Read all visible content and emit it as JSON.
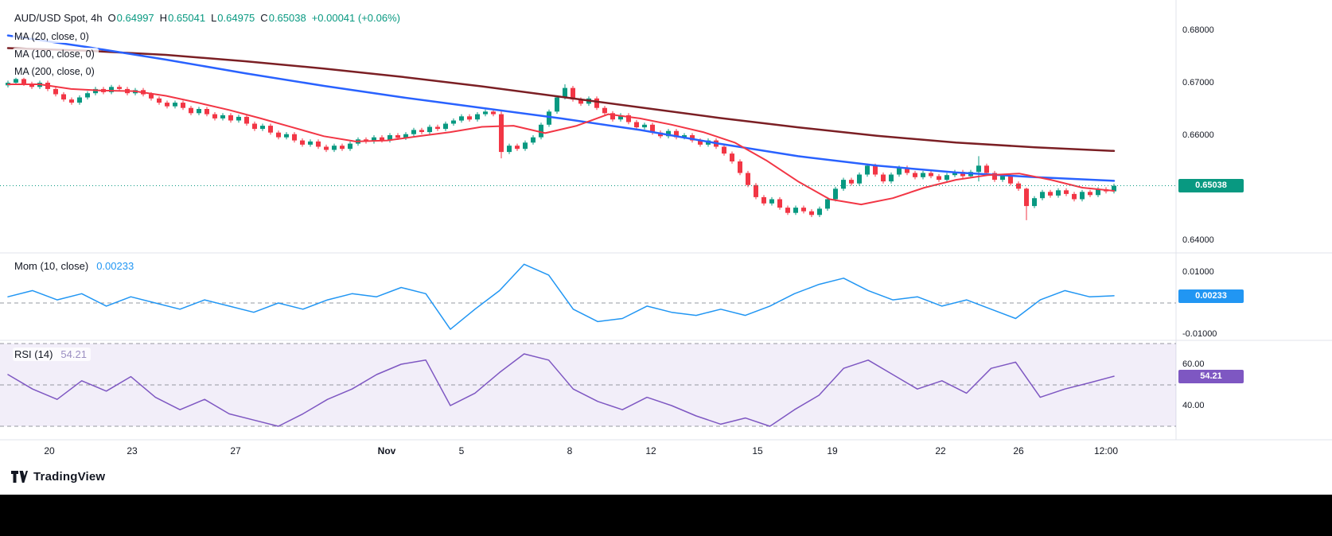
{
  "header": {
    "symbol": "AUD/USD Spot, 4h",
    "ohlc": [
      {
        "label": "O",
        "value": "0.64997"
      },
      {
        "label": "H",
        "value": "0.65041"
      },
      {
        "label": "L",
        "value": "0.64975"
      },
      {
        "label": "C",
        "value": "0.65038"
      }
    ],
    "change": "+0.00041 (+0.06%)",
    "ma_labels": [
      "MA (20, close, 0)",
      "MA (100, close, 0)",
      "MA (200, close, 0)"
    ]
  },
  "panes": {
    "mom": {
      "label": "Mom (10, close)",
      "value": "0.00233",
      "badge": "0.00233"
    },
    "rsi": {
      "label": "RSI (14)",
      "value": "54.21",
      "badge": "54.21"
    }
  },
  "axes": {
    "price": [
      "0.68000",
      "0.67000",
      "0.66000",
      "0.64000"
    ],
    "price_badge": "0.65038",
    "mom": [
      "0.01000",
      "-0.01000"
    ],
    "rsi": [
      "60.00",
      "40.00"
    ],
    "time": [
      "20",
      "23",
      "27",
      "Nov",
      "5",
      "8",
      "12",
      "15",
      "19",
      "22",
      "26",
      "12:00"
    ]
  },
  "footer": {
    "brand": "TradingView"
  },
  "colors": {
    "up": "#089981",
    "down": "#f23645",
    "ma20": "#f23645",
    "ma100": "#2962ff",
    "ma200": "#7b1f24",
    "mom": "#2196f3",
    "rsi": "#7e57c2",
    "rsi_band": "rgba(126,87,194,0.10)",
    "grid_dash": "#9598a1",
    "separator": "#e0e3eb"
  },
  "chart_data": {
    "type": "candlestick",
    "title": "AUD/USD Spot, 4h",
    "interval": "4h",
    "last_price": 0.65038,
    "ohlc_current": {
      "open": 0.64997,
      "high": 0.65041,
      "low": 0.64975,
      "close": 0.65038,
      "change": 0.00041,
      "change_pct": 0.06
    },
    "price_axis_ticks": [
      0.68,
      0.67,
      0.66,
      0.64
    ],
    "x_tick_labels": [
      "20",
      "23",
      "27",
      "Nov",
      "5",
      "8",
      "12",
      "15",
      "19",
      "22",
      "26",
      "12:00"
    ],
    "candles": {
      "first_open": 0.6695,
      "closes": [
        0.67,
        0.6707,
        0.6698,
        0.6692,
        0.67,
        0.6688,
        0.6678,
        0.6668,
        0.6662,
        0.6672,
        0.668,
        0.6688,
        0.6682,
        0.6692,
        0.6688,
        0.668,
        0.6686,
        0.6678,
        0.667,
        0.6662,
        0.6655,
        0.6662,
        0.6652,
        0.6642,
        0.665,
        0.664,
        0.6632,
        0.6638,
        0.6628,
        0.6635,
        0.6622,
        0.6612,
        0.6618,
        0.6605,
        0.6596,
        0.6602,
        0.659,
        0.6582,
        0.6588,
        0.6578,
        0.6572,
        0.658,
        0.6574,
        0.6584,
        0.6592,
        0.6588,
        0.6596,
        0.659,
        0.66,
        0.6595,
        0.6602,
        0.661,
        0.6606,
        0.6616,
        0.6612,
        0.6622,
        0.6628,
        0.6636,
        0.663,
        0.664,
        0.6645,
        0.664,
        0.6568,
        0.658,
        0.6574,
        0.6586,
        0.6596,
        0.662,
        0.6645,
        0.6672,
        0.669,
        0.6668,
        0.666,
        0.667,
        0.6652,
        0.6642,
        0.663,
        0.6638,
        0.6625,
        0.6615,
        0.662,
        0.6605,
        0.6598,
        0.6608,
        0.6596,
        0.66,
        0.659,
        0.6582,
        0.659,
        0.6578,
        0.6565,
        0.655,
        0.6528,
        0.6505,
        0.6482,
        0.647,
        0.6478,
        0.6462,
        0.6452,
        0.6462,
        0.6455,
        0.6448,
        0.646,
        0.6478,
        0.6498,
        0.6515,
        0.6508,
        0.6525,
        0.6542,
        0.6525,
        0.6512,
        0.6525,
        0.6538,
        0.6528,
        0.652,
        0.6528,
        0.6522,
        0.6515,
        0.6524,
        0.653,
        0.6522,
        0.653,
        0.6542,
        0.6528,
        0.6515,
        0.6522,
        0.6508,
        0.6498,
        0.6465,
        0.648,
        0.6492,
        0.6485,
        0.6495,
        0.6488,
        0.6478,
        0.6492,
        0.6486,
        0.6497,
        0.6493,
        0.65038
      ],
      "wick_overrides": {
        "62": [
          0.6648,
          0.6556
        ],
        "70": [
          0.6697,
          0.6668
        ],
        "122": [
          0.656,
          0.6512
        ],
        "128": [
          0.65,
          0.6438
        ]
      }
    },
    "ma20": {
      "name": "MA (20, close, 0)",
      "values": [
        0.6697,
        0.6697,
        0.6688,
        0.6685,
        0.6684,
        0.6675,
        0.6662,
        0.6648,
        0.6632,
        0.6615,
        0.6598,
        0.6588,
        0.659,
        0.6598,
        0.6606,
        0.6616,
        0.6618,
        0.6604,
        0.6618,
        0.664,
        0.6632,
        0.662,
        0.6606,
        0.6586,
        0.6552,
        0.6512,
        0.6478,
        0.6468,
        0.648,
        0.65,
        0.6515,
        0.6524,
        0.6527,
        0.6515,
        0.65,
        0.6494
      ]
    },
    "ma100": {
      "name": "MA (100, close, 0)",
      "values": [
        0.679,
        0.6768,
        0.6744,
        0.6718,
        0.6694,
        0.6672,
        0.6652,
        0.6632,
        0.661,
        0.6584,
        0.656,
        0.6542,
        0.6529,
        0.652,
        0.6513
      ]
    },
    "ma200": {
      "name": "MA (200, close, 0)",
      "values": [
        0.6766,
        0.6761,
        0.6753,
        0.6741,
        0.6727,
        0.6711,
        0.6693,
        0.6673,
        0.6653,
        0.6633,
        0.6615,
        0.6599,
        0.6586,
        0.6577,
        0.657
      ]
    },
    "momentum": {
      "name": "Mom (10, close)",
      "current": 0.00233,
      "axis_ticks": [
        0.01,
        -0.01
      ],
      "values": [
        0.002,
        0.004,
        0.001,
        0.003,
        -0.001,
        0.002,
        0.0,
        -0.002,
        0.001,
        -0.001,
        -0.003,
        0.0,
        -0.002,
        0.001,
        0.003,
        0.002,
        0.005,
        0.003,
        -0.0085,
        -0.002,
        0.004,
        0.0125,
        0.009,
        -0.002,
        -0.006,
        -0.005,
        -0.001,
        -0.003,
        -0.004,
        -0.002,
        -0.004,
        -0.001,
        0.003,
        0.006,
        0.008,
        0.004,
        0.001,
        0.002,
        -0.001,
        0.001,
        -0.002,
        -0.005,
        0.001,
        0.004,
        0.002,
        0.00233
      ]
    },
    "rsi": {
      "name": "RSI (14)",
      "current": 54.21,
      "band_levels": [
        70,
        50,
        30
      ],
      "axis_ticks": [
        60,
        40
      ],
      "values": [
        55,
        48,
        43,
        52,
        47,
        54,
        44,
        38,
        43,
        36,
        33,
        30,
        36,
        43,
        48,
        55,
        60,
        62,
        40,
        46,
        56,
        65,
        62,
        48,
        42,
        38,
        44,
        40,
        35,
        31,
        34,
        30,
        38,
        45,
        58,
        62,
        55,
        48,
        52,
        46,
        58,
        61,
        44,
        48,
        51,
        54.21
      ]
    }
  }
}
